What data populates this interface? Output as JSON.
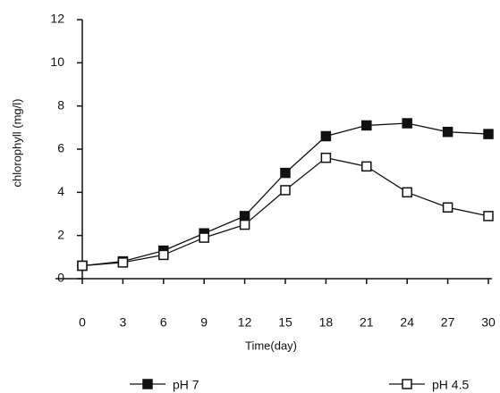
{
  "chart_data": {
    "type": "line",
    "x_label": "Time(day)",
    "y_label": "chlorophyll (mg/l)",
    "x": [
      0,
      3,
      6,
      9,
      12,
      15,
      18,
      21,
      24,
      27,
      30
    ],
    "series": [
      {
        "name": "pH 7",
        "color": "#111111",
        "marker": "filled-square",
        "values": [
          0.6,
          0.8,
          1.3,
          2.1,
          2.9,
          4.9,
          6.6,
          7.1,
          7.2,
          6.8,
          6.7
        ]
      },
      {
        "name": "pH 4.5",
        "color": "#111111",
        "marker": "open-square",
        "values": [
          0.6,
          0.75,
          1.1,
          1.9,
          2.5,
          4.1,
          5.6,
          5.2,
          4.0,
          3.3,
          2.9
        ]
      }
    ],
    "xlim": [
      0,
      30
    ],
    "xticks": [
      0,
      3,
      6,
      9,
      12,
      15,
      18,
      21,
      24,
      27,
      30
    ],
    "ylim": [
      0,
      12
    ],
    "yticks": [
      0,
      2,
      4,
      6,
      8,
      10,
      12
    ],
    "grid": false
  }
}
